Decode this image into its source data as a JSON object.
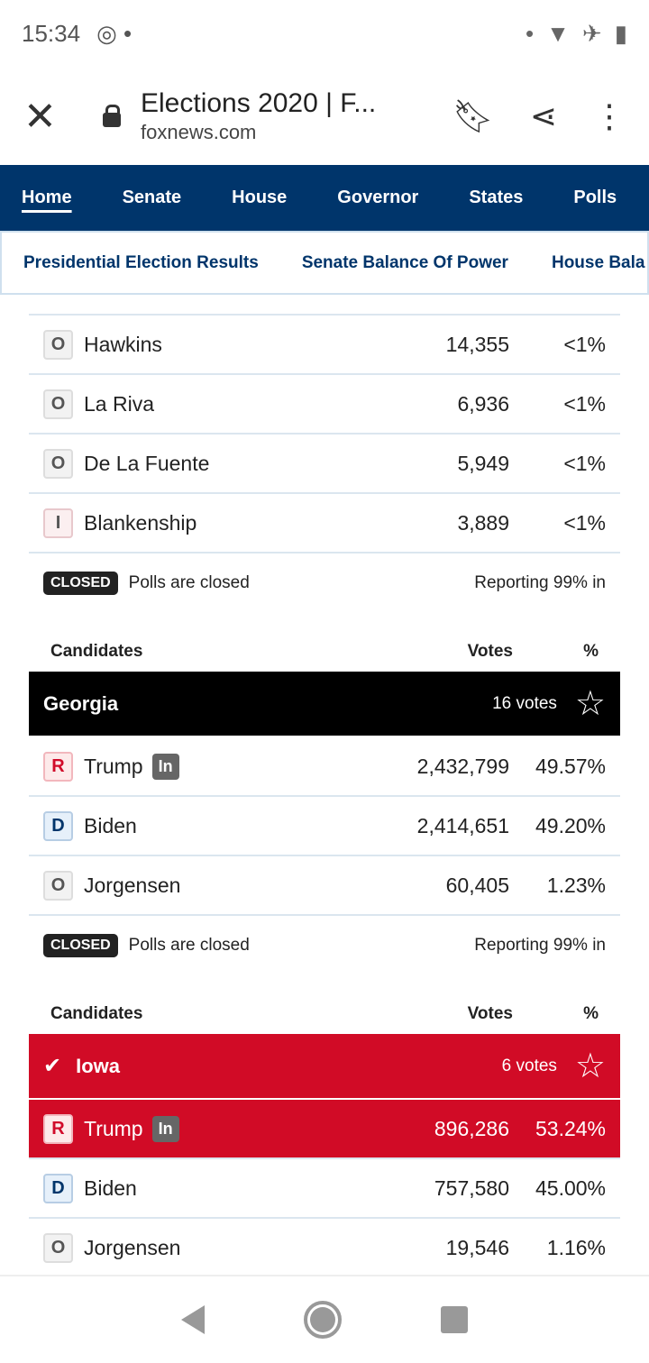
{
  "status_bar": {
    "time": "15:34",
    "left_icons": [
      "chrome-icon",
      "dot"
    ],
    "right_icons": [
      "dot",
      "wifi-icon",
      "airplane-icon",
      "battery-icon"
    ]
  },
  "browser": {
    "title": "Elections 2020 | F...",
    "domain": "foxnews.com"
  },
  "nav": {
    "items": [
      "Home",
      "Senate",
      "House",
      "Governor",
      "States",
      "Polls"
    ],
    "active": "Home"
  },
  "subnav": {
    "items": [
      "Presidential Election Results",
      "Senate Balance Of Power",
      "House Bala"
    ]
  },
  "prev_state": {
    "rows": [
      {
        "party": "O",
        "name": "Hawkins",
        "votes": "14,355",
        "pct": "<1%"
      },
      {
        "party": "O",
        "name": "La Riva",
        "votes": "6,936",
        "pct": "<1%"
      },
      {
        "party": "O",
        "name": "De La Fuente",
        "votes": "5,949",
        "pct": "<1%"
      },
      {
        "party": "I",
        "name": "Blankenship",
        "votes": "3,889",
        "pct": "<1%"
      }
    ],
    "closed": "CLOSED",
    "polls": "Polls are closed",
    "reporting": "Reporting 99% in"
  },
  "headers": {
    "candidates": "Candidates",
    "votes": "Votes",
    "pct": "%"
  },
  "georgia": {
    "name": "Georgia",
    "ev": "16 votes",
    "rows": [
      {
        "party": "R",
        "name": "Trump",
        "in": "In",
        "votes": "2,432,799",
        "pct": "49.57%"
      },
      {
        "party": "D",
        "name": "Biden",
        "votes": "2,414,651",
        "pct": "49.20%"
      },
      {
        "party": "O",
        "name": "Jorgensen",
        "votes": "60,405",
        "pct": "1.23%"
      }
    ],
    "closed": "CLOSED",
    "polls": "Polls are closed",
    "reporting": "Reporting 99% in"
  },
  "iowa": {
    "name": "Iowa",
    "ev": "6 votes",
    "rows": [
      {
        "party": "R",
        "name": "Trump",
        "in": "In",
        "votes": "896,286",
        "pct": "53.24%"
      },
      {
        "party": "D",
        "name": "Biden",
        "votes": "757,580",
        "pct": "45.00%"
      },
      {
        "party": "O",
        "name": "Jorgensen",
        "votes": "19,546",
        "pct": "1.16%"
      }
    ]
  },
  "colors": {
    "nav": "#00356b",
    "republican": "#d10b26",
    "black": "#000000"
  }
}
